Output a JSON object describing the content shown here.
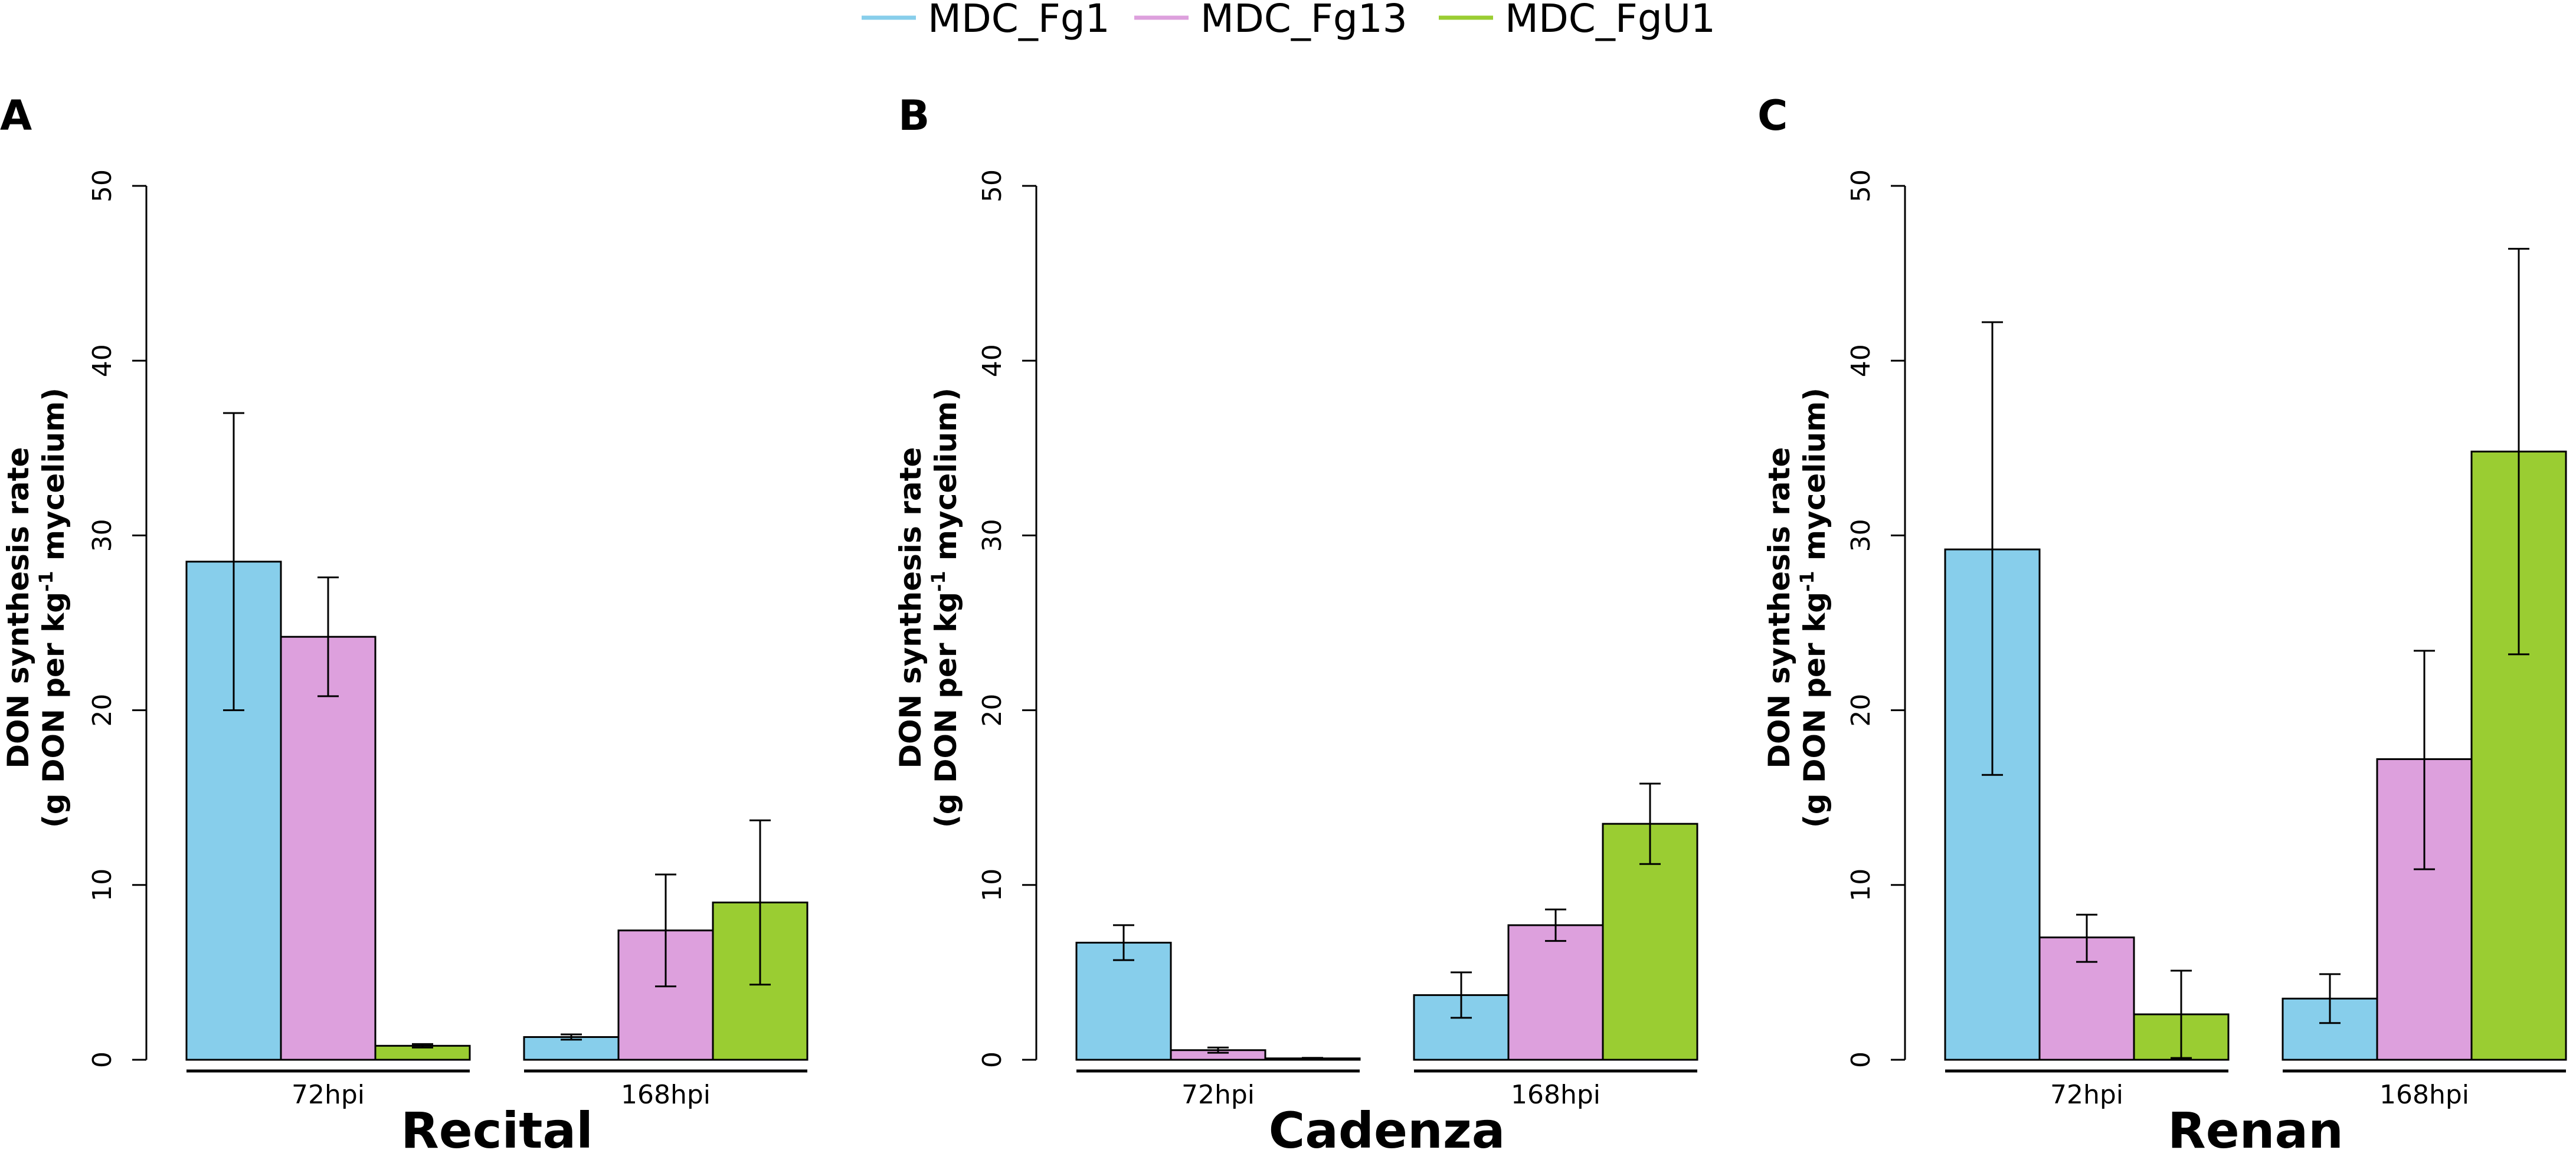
{
  "legend": [
    {
      "name": "MDC_Fg1",
      "color": "#87CEEB"
    },
    {
      "name": "MDC_Fg13",
      "color": "#DDA0DD"
    },
    {
      "name": "MDC_FgU1",
      "color": "#9ACD32"
    }
  ],
  "chart_data": [
    {
      "type": "bar",
      "panel_label": "A",
      "title": "Recital",
      "ylabel_line1": "DON synthesis rate",
      "ylabel_line2_pre": "(g DON per kg",
      "ylabel_line2_sup": "-1",
      "ylabel_line2_post": " mycelium)",
      "ylim": [
        0,
        50
      ],
      "yticks": [
        0,
        10,
        20,
        30,
        40,
        50
      ],
      "ytick_labels": [
        "0",
        "10",
        "20",
        "30",
        "40",
        "50"
      ],
      "categories": [
        "72hpi",
        "168hpi"
      ],
      "series": [
        {
          "name": "MDC_Fg1",
          "values": [
            28.5,
            1.3
          ],
          "err_low": [
            20.0,
            1.15
          ],
          "err_high": [
            37.0,
            1.45
          ]
        },
        {
          "name": "MDC_Fg13",
          "values": [
            24.2,
            7.4
          ],
          "err_low": [
            20.8,
            4.2
          ],
          "err_high": [
            27.6,
            10.6
          ]
        },
        {
          "name": "MDC_FgU1",
          "values": [
            0.8,
            9.0
          ],
          "err_low": [
            0.7,
            4.3
          ],
          "err_high": [
            0.9,
            13.7
          ]
        }
      ]
    },
    {
      "type": "bar",
      "panel_label": "B",
      "title": "Cadenza",
      "ylabel_line1": "DON synthesis rate",
      "ylabel_line2_pre": "(g DON per kg",
      "ylabel_line2_sup": "-1",
      "ylabel_line2_post": " mycelium)",
      "ylim": [
        0,
        50
      ],
      "yticks": [
        0,
        10,
        20,
        30,
        40,
        50
      ],
      "ytick_labels": [
        "0",
        "10",
        "20",
        "30",
        "40",
        "50"
      ],
      "categories": [
        "72hpi",
        "168hpi"
      ],
      "series": [
        {
          "name": "MDC_Fg1",
          "values": [
            6.7,
            3.7
          ],
          "err_low": [
            5.7,
            2.4
          ],
          "err_high": [
            7.7,
            5.0
          ]
        },
        {
          "name": "MDC_Fg13",
          "values": [
            0.55,
            7.7
          ],
          "err_low": [
            0.4,
            6.8
          ],
          "err_high": [
            0.7,
            8.6
          ]
        },
        {
          "name": "MDC_FgU1",
          "values": [
            0.08,
            13.5
          ],
          "err_low": [
            0.05,
            11.2
          ],
          "err_high": [
            0.11,
            15.8
          ]
        }
      ]
    },
    {
      "type": "bar",
      "panel_label": "C",
      "title": "Renan",
      "ylabel_line1": "DON synthesis rate",
      "ylabel_line2_pre": "(g DON per kg",
      "ylabel_line2_sup": "-1",
      "ylabel_line2_post": " mycelium)",
      "ylim": [
        0,
        50
      ],
      "yticks": [
        0,
        10,
        20,
        30,
        40,
        50
      ],
      "ytick_labels": [
        "0",
        "10",
        "20",
        "30",
        "40",
        "50"
      ],
      "categories": [
        "72hpi",
        "168hpi"
      ],
      "series": [
        {
          "name": "MDC_Fg1",
          "values": [
            29.2,
            3.5
          ],
          "err_low": [
            16.3,
            2.1
          ],
          "err_high": [
            42.2,
            4.9
          ]
        },
        {
          "name": "MDC_Fg13",
          "values": [
            7.0,
            17.2
          ],
          "err_low": [
            5.6,
            10.9
          ],
          "err_high": [
            8.3,
            23.4
          ]
        },
        {
          "name": "MDC_FgU1",
          "values": [
            2.6,
            34.8
          ],
          "err_low": [
            0.1,
            23.2
          ],
          "err_high": [
            5.1,
            46.4
          ]
        }
      ]
    }
  ]
}
